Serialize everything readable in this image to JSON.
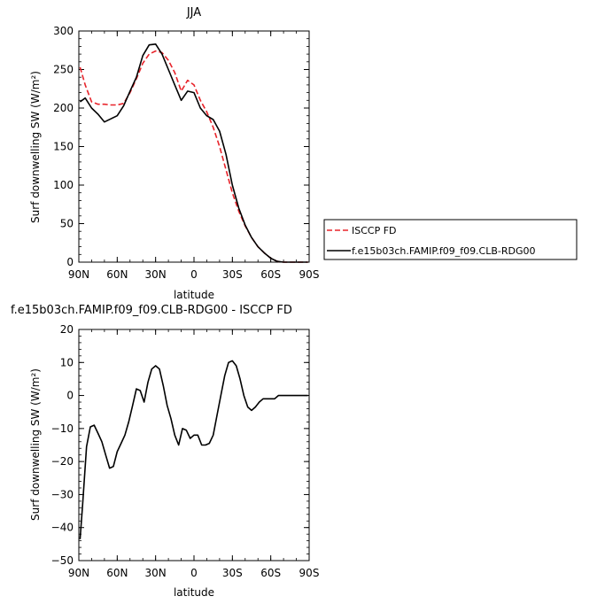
{
  "chart_data": [
    {
      "type": "line",
      "title": "JJA",
      "xlabel": "latitude",
      "ylabel": "Surf downwelling SW (W/m²)",
      "xlim": [
        90,
        -90
      ],
      "ylim": [
        0,
        300
      ],
      "xtick_values": [
        90,
        60,
        30,
        0,
        -30,
        -60,
        -90
      ],
      "xtick_labels": [
        "90N",
        "60N",
        "30N",
        "0",
        "30S",
        "60S",
        "90S"
      ],
      "ytick_values": [
        0,
        50,
        100,
        150,
        200,
        250,
        300
      ],
      "ytick_labels": [
        "0",
        "50",
        "100",
        "150",
        "200",
        "250",
        "300"
      ],
      "legend_position": "right",
      "series": [
        {
          "name": "ISCCP FD",
          "color": "#e8232a",
          "dashed": true,
          "x": [
            89,
            85,
            80,
            75,
            70,
            65,
            60,
            55,
            50,
            45,
            40,
            35,
            30,
            25,
            20,
            15,
            10,
            5,
            0,
            -5,
            -10,
            -15,
            -20,
            -25,
            -30,
            -35,
            -40,
            -45,
            -50,
            -55,
            -60,
            -65,
            -70,
            -75,
            -80,
            -85,
            -89
          ],
          "y": [
            253,
            230,
            208,
            205,
            205,
            204,
            204,
            206,
            220,
            238,
            258,
            270,
            274,
            272,
            262,
            246,
            222,
            236,
            230,
            210,
            195,
            175,
            150,
            120,
            90,
            66,
            47,
            32,
            20,
            12,
            5,
            1,
            0,
            0,
            0,
            0,
            0
          ]
        },
        {
          "name": "f.e15b03ch.FAMIP.f09_f09.CLB-RDG00",
          "color": "#000000",
          "dashed": false,
          "x": [
            89,
            85,
            80,
            75,
            70,
            65,
            60,
            55,
            50,
            45,
            40,
            35,
            30,
            25,
            20,
            15,
            10,
            5,
            0,
            -5,
            -10,
            -15,
            -20,
            -25,
            -30,
            -35,
            -40,
            -45,
            -50,
            -55,
            -60,
            -65,
            -70,
            -75,
            -80,
            -85,
            -89
          ],
          "y": [
            208,
            213,
            200,
            192,
            182,
            186,
            190,
            203,
            222,
            240,
            268,
            282,
            283,
            270,
            250,
            230,
            210,
            222,
            220,
            200,
            190,
            185,
            170,
            140,
            100,
            70,
            48,
            32,
            20,
            12,
            5,
            1,
            0,
            0,
            0,
            0,
            0
          ]
        }
      ]
    },
    {
      "type": "line",
      "title": "f.e15b03ch.FAMIP.f09_f09.CLB-RDG00 - ISCCP FD",
      "xlabel": "latitude",
      "ylabel": "Surf downwelling SW (W/m²)",
      "xlim": [
        90,
        -90
      ],
      "ylim": [
        -50,
        20
      ],
      "xtick_values": [
        90,
        60,
        30,
        0,
        -30,
        -60,
        -90
      ],
      "xtick_labels": [
        "90N",
        "60N",
        "30N",
        "0",
        "30S",
        "60S",
        "90S"
      ],
      "ytick_values": [
        -50,
        -40,
        -30,
        -20,
        -10,
        0,
        10,
        20
      ],
      "ytick_labels": [
        "−50",
        "−40",
        "−30",
        "−20",
        "−10",
        "0",
        "10",
        "20"
      ],
      "series": [
        {
          "color": "#000000",
          "dashed": false,
          "x": [
            89,
            87,
            84,
            81,
            78,
            75,
            72,
            69,
            66,
            63,
            60,
            57,
            54,
            51,
            48,
            45,
            42,
            39,
            36,
            33,
            30,
            27,
            24,
            21,
            18,
            15,
            12,
            9,
            6,
            3,
            0,
            -3,
            -6,
            -9,
            -12,
            -15,
            -18,
            -21,
            -24,
            -27,
            -30,
            -33,
            -36,
            -39,
            -42,
            -45,
            -48,
            -51,
            -54,
            -57,
            -60,
            -63,
            -66,
            -69,
            -72,
            -75,
            -78,
            -81,
            -84,
            -87,
            -89
          ],
          "y": [
            -43.5,
            -33,
            -15.5,
            -9.5,
            -9,
            -11.5,
            -14,
            -18,
            -22,
            -21.5,
            -17,
            -14.5,
            -12,
            -8,
            -3,
            2,
            1.5,
            -2,
            4,
            8,
            9,
            8,
            3,
            -3,
            -7,
            -12,
            -15,
            -10,
            -10.5,
            -13,
            -12,
            -12,
            -15,
            -15,
            -14.5,
            -12,
            -6,
            0,
            6,
            10,
            10.5,
            9,
            5,
            0,
            -3.5,
            -4.5,
            -3.5,
            -2,
            -1,
            -1,
            -1,
            -1,
            0,
            0,
            0,
            0,
            0,
            0,
            0,
            0,
            0
          ]
        }
      ]
    }
  ]
}
